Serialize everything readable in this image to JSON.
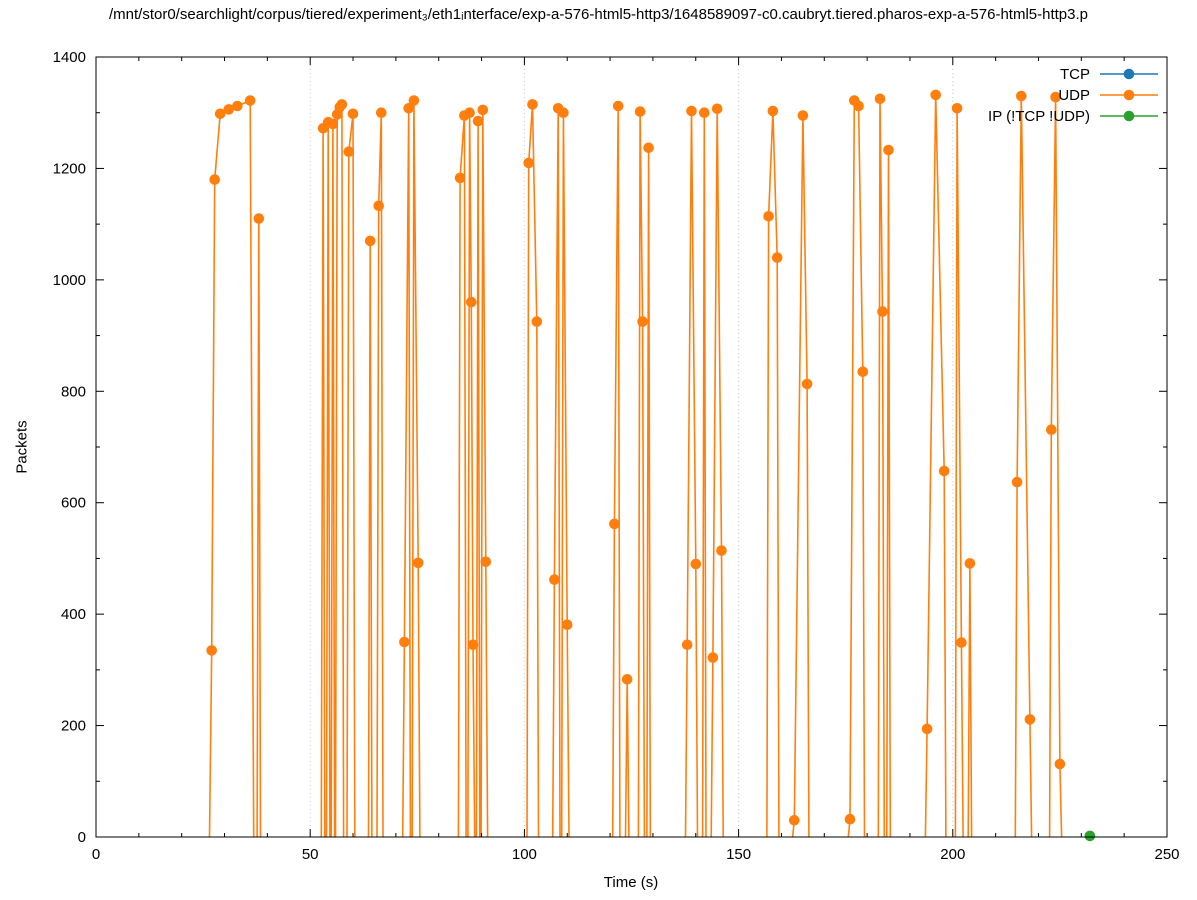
{
  "chart_data": {
    "type": "line",
    "title": "/mnt/stor0/searchlight/corpus/tiered/experiment₃/eth1ᵢnterface/exp-a-576-html5-http3/1648589097-c0.caubryt.tiered.pharos-exp-a-576-html5-http3.p",
    "xlabel": "Time (s)",
    "ylabel": "Packets",
    "xlim": [
      0,
      250
    ],
    "ylim": [
      0,
      1400
    ],
    "x_ticks": [
      0,
      50,
      100,
      150,
      200,
      250
    ],
    "y_ticks": [
      0,
      200,
      400,
      600,
      800,
      1000,
      1200,
      1400
    ],
    "x_minor_step": 10,
    "y_minor_step": 100,
    "grid": "vertical-dotted",
    "legend_position": "top-right",
    "series": [
      {
        "name": "TCP",
        "color": "#1f77b4",
        "points": [],
        "line": []
      },
      {
        "name": "UDP",
        "color": "#ff7f0e",
        "points": [
          [
            27,
            335
          ],
          [
            27.7,
            1180
          ],
          [
            29,
            1298
          ],
          [
            31,
            1306
          ],
          [
            33,
            1312
          ],
          [
            36,
            1322
          ],
          [
            38,
            1110
          ],
          [
            53,
            1272
          ],
          [
            54.2,
            1283
          ],
          [
            55.3,
            1280
          ],
          [
            56.3,
            1297
          ],
          [
            56.9,
            1310
          ],
          [
            57.4,
            1315
          ],
          [
            59,
            1230
          ],
          [
            60,
            1298
          ],
          [
            64,
            1070
          ],
          [
            66,
            1133
          ],
          [
            66.6,
            1300
          ],
          [
            72,
            350
          ],
          [
            73,
            1308
          ],
          [
            74.2,
            1322
          ],
          [
            75.2,
            492
          ],
          [
            85,
            1183
          ],
          [
            86,
            1295
          ],
          [
            87.2,
            1300
          ],
          [
            87.6,
            960
          ],
          [
            88,
            345
          ],
          [
            89.2,
            1285
          ],
          [
            90.3,
            1305
          ],
          [
            91,
            494
          ],
          [
            101,
            1210
          ],
          [
            101.9,
            1315
          ],
          [
            102.9,
            925
          ],
          [
            107,
            462
          ],
          [
            107.9,
            1308
          ],
          [
            109.1,
            1300
          ],
          [
            110,
            381
          ],
          [
            121,
            562
          ],
          [
            121.9,
            1312
          ],
          [
            124,
            283
          ],
          [
            127,
            1302
          ],
          [
            127.6,
            925
          ],
          [
            129,
            1237
          ],
          [
            138,
            345
          ],
          [
            139,
            1303
          ],
          [
            140,
            490
          ],
          [
            142,
            1300
          ],
          [
            144,
            322
          ],
          [
            145,
            1307
          ],
          [
            146,
            514
          ],
          [
            157,
            1114
          ],
          [
            158,
            1303
          ],
          [
            159,
            1040
          ],
          [
            163,
            30
          ],
          [
            165,
            1295
          ],
          [
            166,
            813
          ],
          [
            176,
            32
          ],
          [
            177,
            1322
          ],
          [
            178,
            1312
          ],
          [
            179,
            835
          ],
          [
            183,
            1325
          ],
          [
            183.6,
            943
          ],
          [
            185,
            1233
          ],
          [
            194,
            194
          ],
          [
            196,
            1332
          ],
          [
            198,
            657
          ],
          [
            201,
            1308
          ],
          [
            202,
            349
          ],
          [
            204,
            491
          ],
          [
            215,
            637
          ],
          [
            216,
            1330
          ],
          [
            218,
            211
          ],
          [
            223,
            731
          ],
          [
            224,
            1328
          ],
          [
            225,
            131
          ]
        ],
        "line": [
          [
            [
              26.5,
              0
            ],
            [
              27,
              335
            ],
            [
              27.7,
              1180
            ],
            [
              29,
              1298
            ],
            [
              31,
              1306
            ],
            [
              33,
              1312
            ],
            [
              36,
              1322
            ],
            [
              36.8,
              0
            ]
          ],
          [
            [
              37.6,
              0
            ],
            [
              38,
              1110
            ],
            [
              38.4,
              0
            ]
          ],
          [
            [
              52.6,
              0
            ],
            [
              53,
              1272
            ],
            [
              53.4,
              0
            ]
          ],
          [
            [
              53.8,
              0
            ],
            [
              54.2,
              1283
            ],
            [
              54.6,
              0
            ]
          ],
          [
            [
              54.9,
              0
            ],
            [
              55.3,
              1280
            ],
            [
              55.7,
              0
            ]
          ],
          [
            [
              55.9,
              0
            ],
            [
              56.3,
              1297
            ],
            [
              56.9,
              1310
            ],
            [
              57.4,
              1315
            ],
            [
              57.8,
              0
            ]
          ],
          [
            [
              58.6,
              0
            ],
            [
              59,
              1230
            ],
            [
              60,
              1298
            ],
            [
              60.4,
              0
            ]
          ],
          [
            [
              63.6,
              0
            ],
            [
              64,
              1070
            ],
            [
              64.4,
              0
            ]
          ],
          [
            [
              65.6,
              0
            ],
            [
              66,
              1133
            ],
            [
              66.6,
              1300
            ],
            [
              67,
              0
            ]
          ],
          [
            [
              71.6,
              0
            ],
            [
              72,
              350
            ],
            [
              73,
              1308
            ],
            [
              73.4,
              0
            ]
          ],
          [
            [
              73.8,
              0
            ],
            [
              74.2,
              1322
            ],
            [
              75.2,
              492
            ],
            [
              75.6,
              0
            ]
          ],
          [
            [
              84.6,
              0
            ],
            [
              85,
              1183
            ],
            [
              86,
              1295
            ],
            [
              86.4,
              0
            ]
          ],
          [
            [
              86.8,
              0
            ],
            [
              87.2,
              1300
            ],
            [
              87.6,
              960
            ],
            [
              88,
              345
            ],
            [
              88.4,
              0
            ]
          ],
          [
            [
              88.8,
              0
            ],
            [
              89.2,
              1285
            ],
            [
              89.6,
              0
            ]
          ],
          [
            [
              89.9,
              0
            ],
            [
              90.3,
              1305
            ],
            [
              91,
              494
            ],
            [
              91.4,
              0
            ]
          ],
          [
            [
              100.6,
              0
            ],
            [
              101,
              1210
            ],
            [
              101.9,
              1315
            ],
            [
              102.9,
              925
            ],
            [
              103.3,
              0
            ]
          ],
          [
            [
              106.6,
              0
            ],
            [
              107,
              462
            ],
            [
              107.9,
              1308
            ],
            [
              108.3,
              0
            ]
          ],
          [
            [
              108.7,
              0
            ],
            [
              109.1,
              1300
            ],
            [
              110,
              381
            ],
            [
              110.4,
              0
            ]
          ],
          [
            [
              120.6,
              0
            ],
            [
              121,
              562
            ],
            [
              121.9,
              1312
            ],
            [
              122.3,
              0
            ]
          ],
          [
            [
              123.6,
              0
            ],
            [
              124,
              283
            ],
            [
              124.4,
              0
            ]
          ],
          [
            [
              126.6,
              0
            ],
            [
              127,
              1302
            ],
            [
              127.6,
              925
            ],
            [
              128,
              0
            ]
          ],
          [
            [
              128.6,
              0
            ],
            [
              129,
              1237
            ],
            [
              129.4,
              0
            ]
          ],
          [
            [
              137.6,
              0
            ],
            [
              138,
              345
            ],
            [
              139,
              1303
            ],
            [
              140,
              490
            ],
            [
              140.4,
              0
            ]
          ],
          [
            [
              141.6,
              0
            ],
            [
              142,
              1300
            ],
            [
              142.4,
              0
            ]
          ],
          [
            [
              143.6,
              0
            ],
            [
              144,
              322
            ],
            [
              145,
              1307
            ],
            [
              146,
              514
            ],
            [
              146.4,
              0
            ]
          ],
          [
            [
              156.6,
              0
            ],
            [
              157,
              1114
            ],
            [
              158,
              1303
            ],
            [
              159,
              1040
            ],
            [
              159.4,
              0
            ]
          ],
          [
            [
              162.6,
              0
            ],
            [
              163,
              30
            ],
            [
              165,
              1295
            ],
            [
              166,
              813
            ],
            [
              166.4,
              0
            ]
          ],
          [
            [
              175.6,
              0
            ],
            [
              176,
              32
            ],
            [
              177,
              1322
            ],
            [
              178,
              1312
            ],
            [
              179,
              835
            ],
            [
              179.4,
              0
            ]
          ],
          [
            [
              182.6,
              0
            ],
            [
              183,
              1325
            ],
            [
              183.6,
              943
            ],
            [
              184,
              0
            ]
          ],
          [
            [
              184.6,
              0
            ],
            [
              185,
              1233
            ],
            [
              185.4,
              0
            ]
          ],
          [
            [
              193.6,
              0
            ],
            [
              194,
              194
            ],
            [
              196,
              1332
            ],
            [
              198,
              657
            ],
            [
              198.4,
              0
            ]
          ],
          [
            [
              200.6,
              0
            ],
            [
              201,
              1308
            ],
            [
              202,
              349
            ],
            [
              202.4,
              0
            ]
          ],
          [
            [
              203.6,
              0
            ],
            [
              204,
              491
            ],
            [
              204.4,
              0
            ]
          ],
          [
            [
              214.6,
              0
            ],
            [
              215,
              637
            ],
            [
              216,
              1330
            ],
            [
              218,
              211
            ],
            [
              218.4,
              0
            ]
          ],
          [
            [
              222.6,
              0
            ],
            [
              223,
              731
            ],
            [
              224,
              1328
            ],
            [
              225,
              131
            ],
            [
              225.4,
              0
            ]
          ]
        ]
      },
      {
        "name": "IP (!TCP !UDP)",
        "color": "#2ca02c",
        "points": [
          [
            232,
            2
          ]
        ],
        "line": []
      }
    ]
  }
}
